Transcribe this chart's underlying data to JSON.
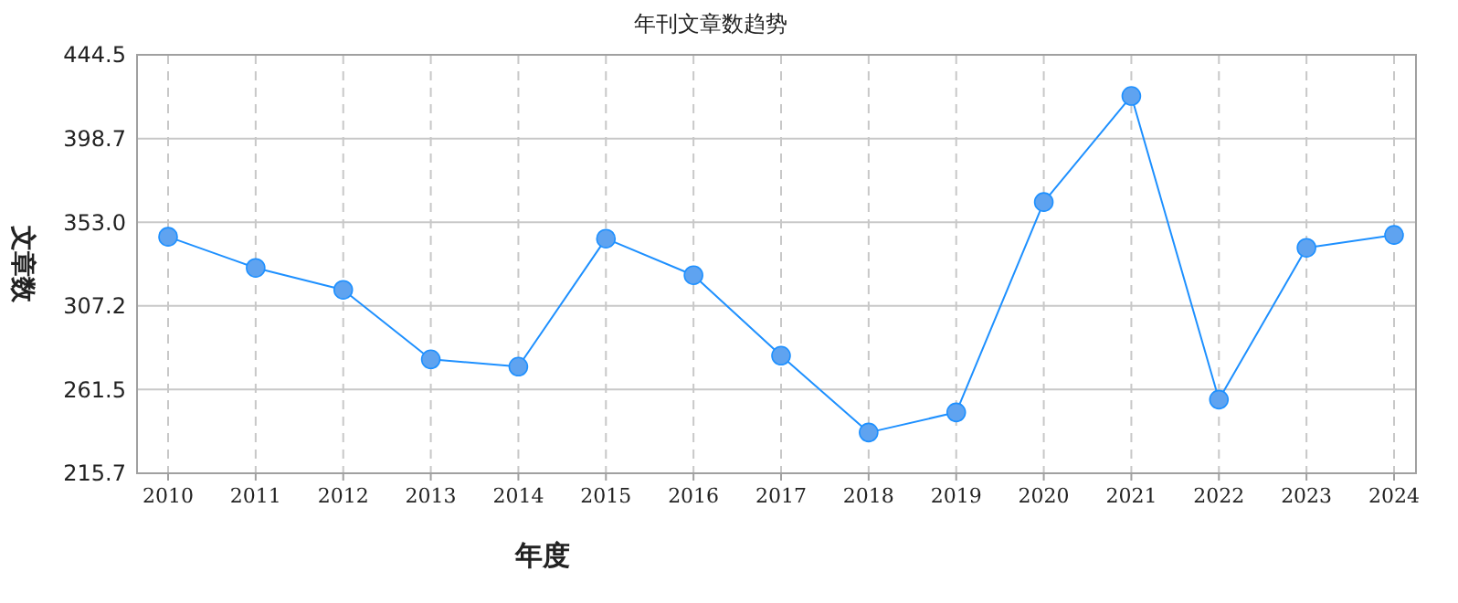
{
  "chart_data": {
    "type": "line",
    "title": "年刊文章数趋势",
    "xlabel": "年度",
    "ylabel": "文章数",
    "categories": [
      "2010",
      "2011",
      "2012",
      "2013",
      "2014",
      "2015",
      "2016",
      "2017",
      "2018",
      "2019",
      "2020",
      "2021",
      "2022",
      "2023",
      "2024"
    ],
    "series": [
      {
        "color": "#1e90ff",
        "values": [
          345,
          328,
          316,
          278,
          274,
          344,
          324,
          280,
          238,
          249,
          364,
          422,
          256,
          339,
          346
        ]
      }
    ],
    "ylim": [
      215.7,
      444.5
    ],
    "yticks": [
      215.7,
      261.5,
      307.2,
      {
        "value": 353,
        "label": "353.0"
      },
      398.7,
      444.5
    ],
    "grid": true,
    "marker": "circle",
    "line_style": "solid"
  }
}
